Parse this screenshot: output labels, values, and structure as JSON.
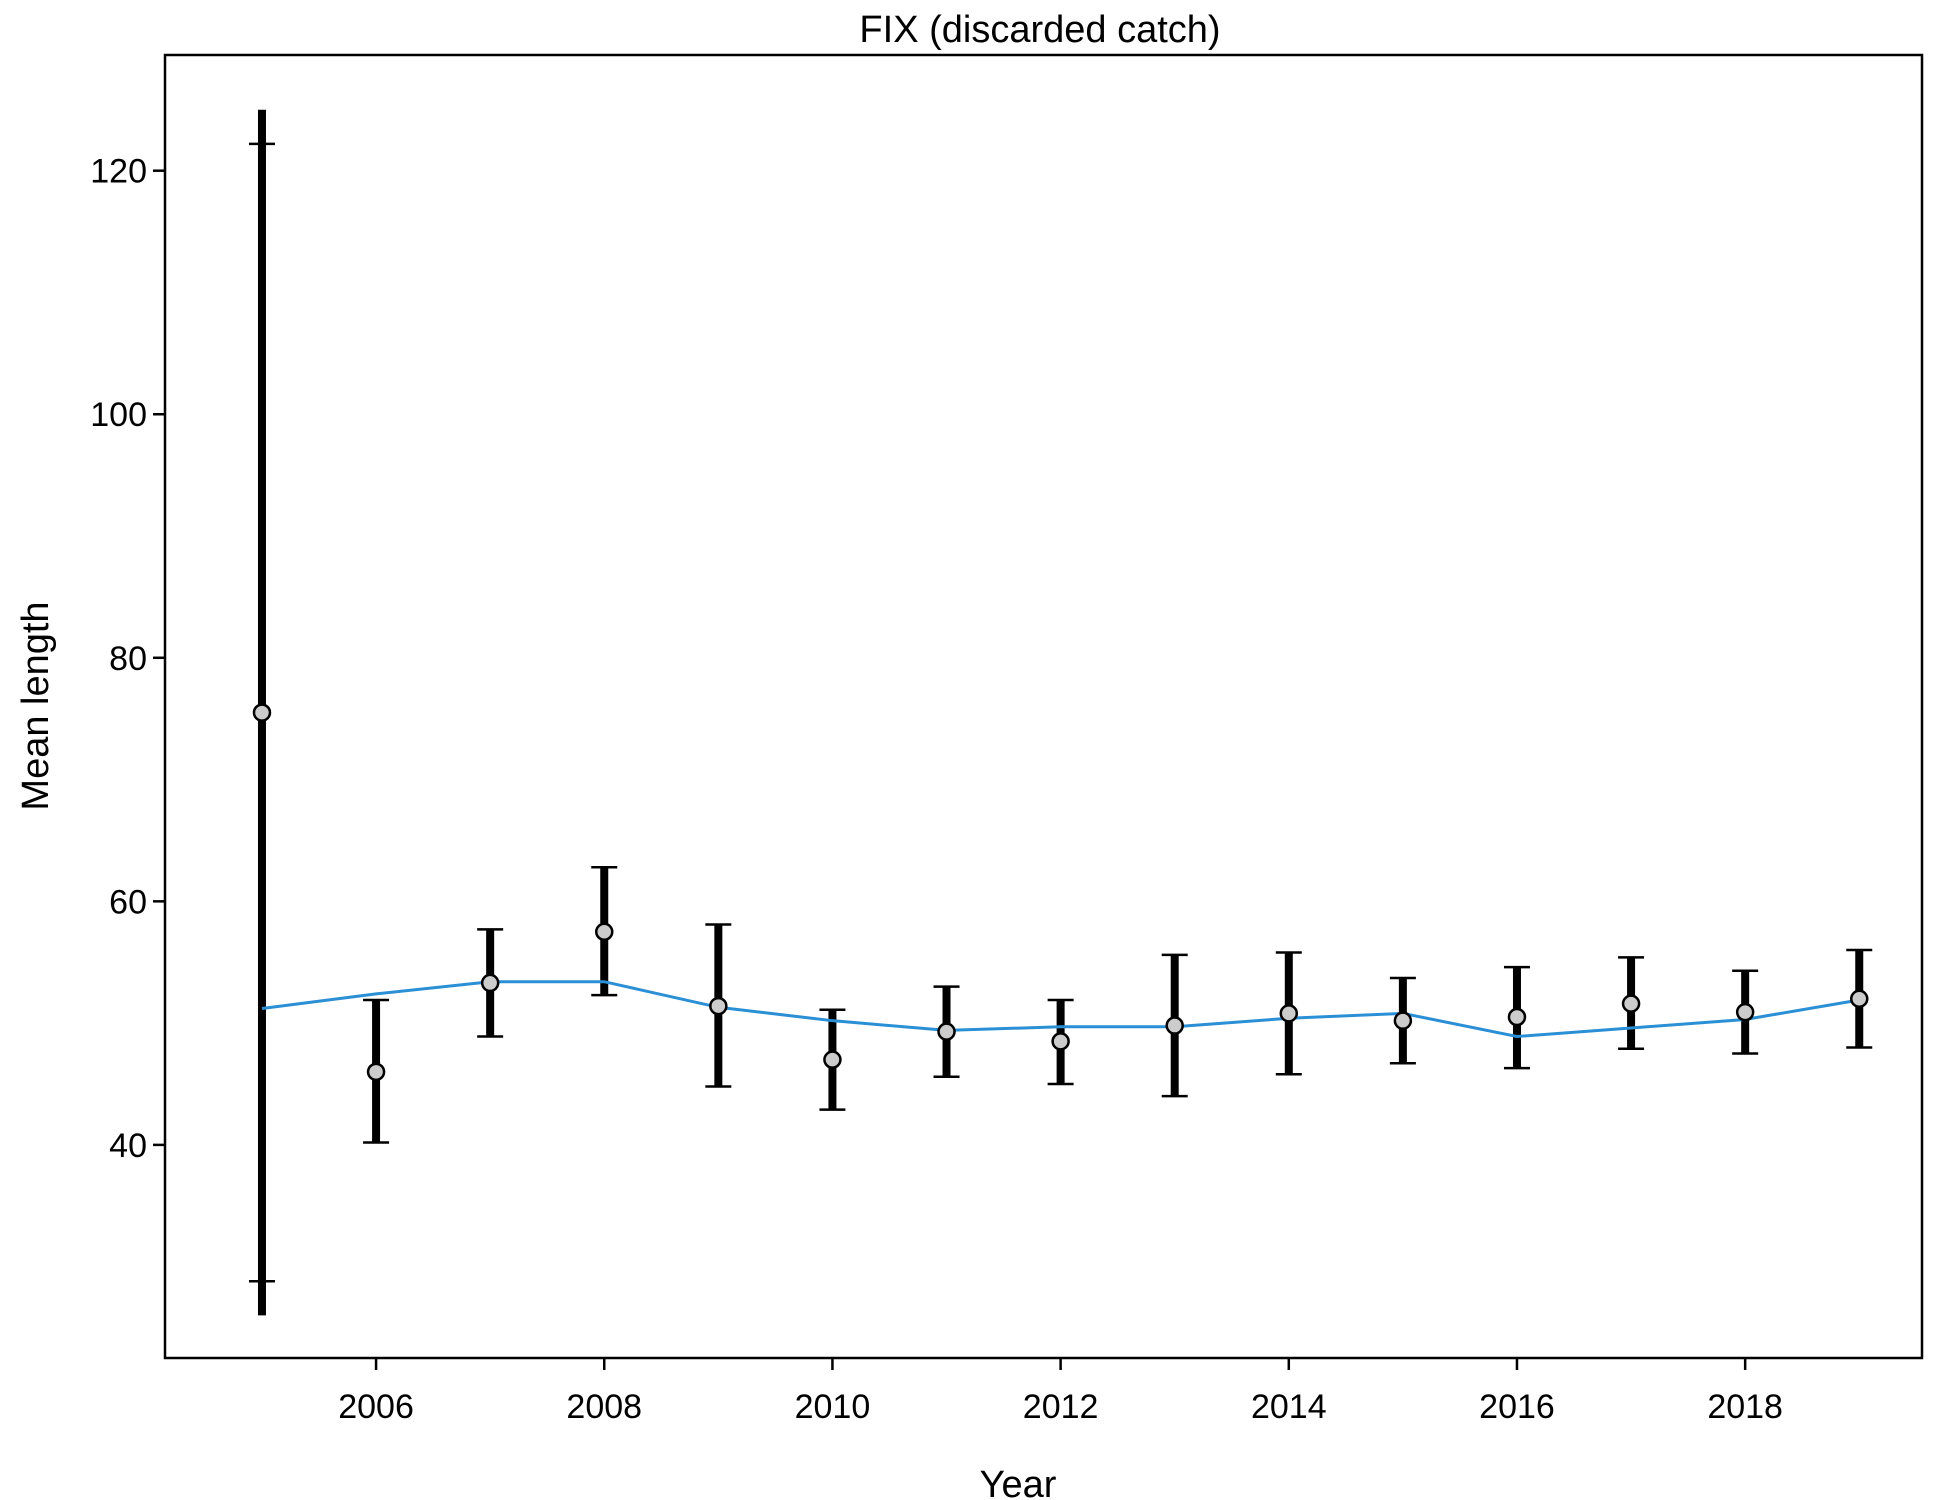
{
  "chart_data": {
    "type": "scatter",
    "title": "FIX (discarded catch)",
    "xlabel": "Year",
    "ylabel": "Mean length",
    "xlim": [
      2004.15,
      2019.55
    ],
    "ylim": [
      22.5,
      129.5
    ],
    "x_ticks": [
      2006,
      2008,
      2010,
      2012,
      2014,
      2016,
      2018
    ],
    "y_ticks": [
      40,
      60,
      80,
      100,
      120
    ],
    "x_tick_labels": [
      "2006",
      "2008",
      "2010",
      "2012",
      "2014",
      "2016",
      "2018"
    ],
    "y_tick_labels": [
      "40",
      "60",
      "80",
      "100",
      "120"
    ],
    "grid": false,
    "colors": {
      "observed_fill": "#cccccc",
      "observed_stroke": "#000000",
      "expected_line": "#2b8fd6",
      "error_bar": "#000000"
    },
    "series": [
      {
        "type": "scatter",
        "x": [
          2005,
          2006,
          2007,
          2008,
          2009,
          2010,
          2011,
          2012,
          2013,
          2014,
          2015,
          2016,
          2017,
          2018,
          2019
        ],
        "y": [
          75.5,
          46.0,
          53.3,
          57.5,
          51.4,
          47.0,
          49.3,
          48.5,
          49.8,
          50.8,
          50.2,
          50.5,
          51.6,
          50.9,
          52.0
        ],
        "outer_low": [
          26.0,
          40.2,
          48.9,
          52.3,
          44.8,
          42.9,
          45.6,
          45.0,
          44.0,
          45.8,
          46.7,
          46.3,
          47.9,
          47.5,
          48.0
        ],
        "outer_high": [
          125.0,
          51.9,
          57.7,
          62.8,
          58.1,
          51.1,
          53.0,
          51.9,
          55.6,
          55.8,
          53.7,
          54.6,
          55.4,
          54.3,
          56.0
        ],
        "inner_low": [
          28.8,
          40.2,
          48.9,
          52.3,
          44.8,
          42.9,
          45.6,
          45.0,
          44.0,
          45.8,
          46.7,
          46.3,
          47.9,
          47.5,
          48.0
        ],
        "inner_high": [
          122.2,
          51.9,
          57.7,
          62.8,
          58.1,
          51.1,
          53.0,
          51.9,
          55.6,
          55.8,
          53.7,
          54.6,
          55.4,
          54.3,
          56.0
        ]
      },
      {
        "type": "line",
        "x": [
          2005,
          2006,
          2007,
          2008,
          2009,
          2010,
          2011,
          2012,
          2013,
          2014,
          2015,
          2016,
          2017,
          2018,
          2019
        ],
        "y": [
          51.2,
          52.4,
          53.4,
          53.4,
          51.3,
          50.2,
          49.4,
          49.7,
          49.7,
          50.4,
          50.8,
          48.9,
          49.6,
          50.3,
          51.9
        ]
      }
    ]
  }
}
